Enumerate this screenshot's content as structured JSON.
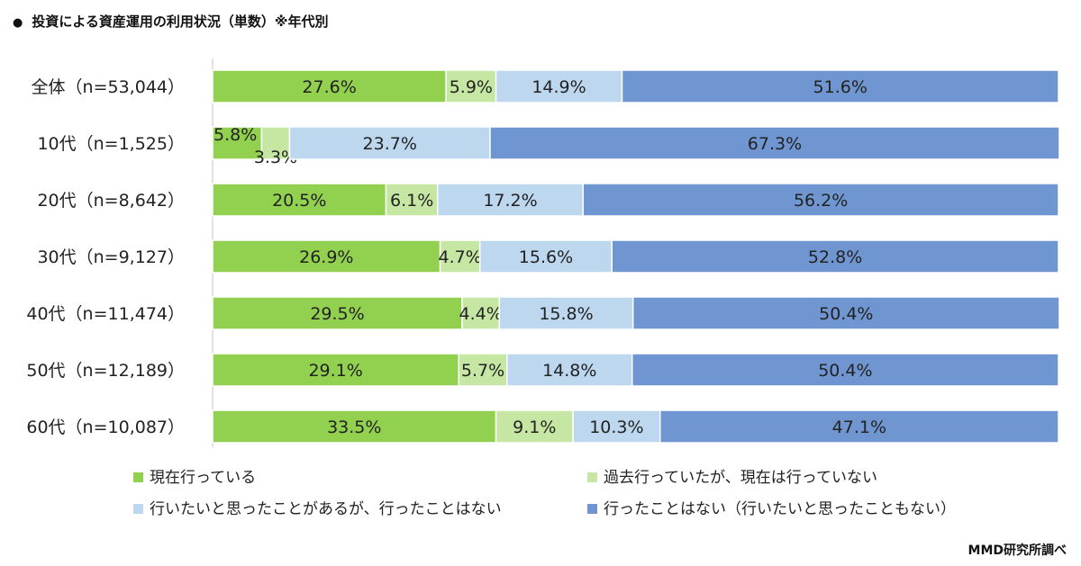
{
  "title": "投資による資産運用の利用状況（単数）※年代別",
  "source": "MMD研究所調べ",
  "chart_data": {
    "type": "bar",
    "orientation": "horizontal",
    "stacked": "percent",
    "categories": [
      "全体（n=53,044）",
      "10代（n=1,525）",
      "20代（n=8,642）",
      "30代（n=9,127）",
      "40代（n=11,474）",
      "50代（n=12,189）",
      "60代（n=10,087）"
    ],
    "series": [
      {
        "name": "現在行っている",
        "color": "#92d050",
        "values": [
          27.6,
          5.8,
          20.5,
          26.9,
          29.5,
          29.1,
          33.5
        ]
      },
      {
        "name": "過去行っていたが、現在は行っていない",
        "color": "#c5e7a3",
        "values": [
          5.9,
          3.3,
          6.1,
          4.7,
          4.4,
          5.7,
          9.1
        ]
      },
      {
        "name": "行いたいと思ったことがあるが、行ったことはない",
        "color": "#bdd7ee",
        "values": [
          14.9,
          23.7,
          17.2,
          15.6,
          15.8,
          14.8,
          10.3
        ]
      },
      {
        "name": "行ったことはない（行いたいと思ったこともない）",
        "color": "#6f96d1",
        "values": [
          51.6,
          67.3,
          56.2,
          52.8,
          50.4,
          50.4,
          47.1
        ]
      }
    ],
    "xlim": [
      0,
      100
    ],
    "legend": "bottom",
    "grid": false,
    "value_suffix": "%"
  }
}
